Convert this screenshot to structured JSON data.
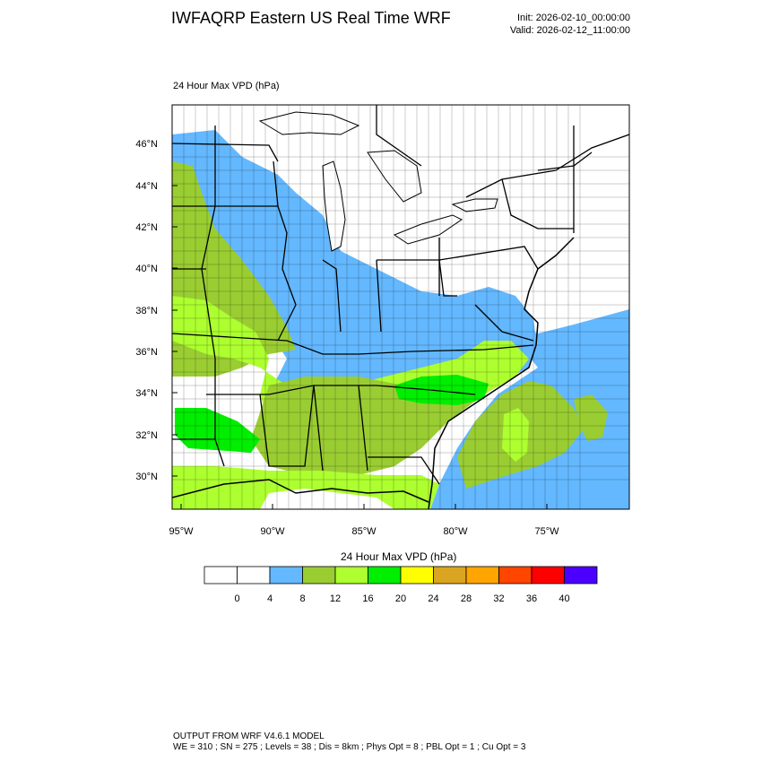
{
  "header": {
    "title": "IWFAQRP Eastern US Real Time WRF",
    "init": "Init: 2026-02-10_00:00:00",
    "valid": "Valid: 2026-02-12_11:00:00",
    "field_label": "24 Hour Max VPD   (hPa)"
  },
  "map": {
    "lat_labels": [
      "46°N",
      "44°N",
      "42°N",
      "40°N",
      "38°N",
      "36°N",
      "34°N",
      "32°N",
      "30°N"
    ],
    "lon_labels": [
      "95°W",
      "90°W",
      "85°W",
      "80°W",
      "75°W"
    ]
  },
  "colorbar": {
    "title": "24 Hour Max VPD  (hPa)",
    "labels": [
      "0",
      "4",
      "8",
      "12",
      "16",
      "20",
      "24",
      "28",
      "32",
      "36",
      "40"
    ],
    "colors": [
      "#ffffff",
      "#ffffff",
      "#63b8ff",
      "#9acd32",
      "#adff2f",
      "#00ee00",
      "#ffff00",
      "#daa520",
      "#ffa500",
      "#ff4500",
      "#ff0000",
      "#4b00ff"
    ]
  },
  "footer": {
    "line1": "OUTPUT FROM WRF V4.6.1 MODEL",
    "line2": "WE = 310 ; SN = 275 ; Levels = 38 ; Dis = 8km ; Phys Opt = 8 ; PBL Opt = 1 ; Cu Opt = 3"
  }
}
